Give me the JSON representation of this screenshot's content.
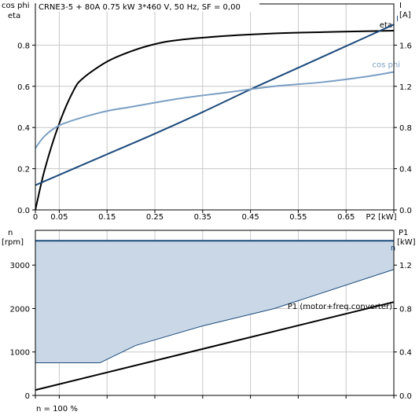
{
  "chart_data": [
    {
      "type": "line",
      "title": "CRNE3-5 + 80A   0.75 kW   3*460 V, 50 Hz, SF = 0,00",
      "xlabel": "P2 [kW]",
      "ylabel_left": [
        "cos phi",
        "eta"
      ],
      "ylabel_right": [
        "I",
        "[A]"
      ],
      "xlim": [
        0,
        0.75
      ],
      "ylim_left": [
        0,
        1
      ],
      "ylim_right": [
        0,
        2
      ],
      "x_ticks": [
        0,
        0.05,
        0.15,
        0.25,
        0.35,
        0.45,
        0.55,
        0.65,
        0.75
      ],
      "x_tick_labels": [
        "0",
        "0.05",
        "0.15",
        "0.25",
        "0.35",
        "0.45",
        "0.55",
        "0.65",
        "P2 [kW]"
      ],
      "y_ticks_left": [
        0.0,
        0.2,
        0.4,
        0.6,
        0.8
      ],
      "y_tick_labels_left": [
        "0.0",
        "0.2",
        "0.4",
        "0.6",
        "0.8"
      ],
      "y_ticks_right": [
        0.0,
        0.4,
        0.8,
        1.2,
        1.6
      ],
      "y_tick_labels_right": [
        "0.0",
        "0.4",
        "0.8",
        "1.2",
        "1.6"
      ],
      "grid": true,
      "series": [
        {
          "name": "eta",
          "axis": "left",
          "color": "#000000",
          "x": [
            0,
            0.02,
            0.05,
            0.08,
            0.1,
            0.15,
            0.2,
            0.25,
            0.3,
            0.4,
            0.5,
            0.6,
            0.7,
            0.75
          ],
          "y": [
            0,
            0.2,
            0.42,
            0.58,
            0.64,
            0.72,
            0.77,
            0.805,
            0.825,
            0.845,
            0.857,
            0.863,
            0.868,
            0.87
          ]
        },
        {
          "name": "I",
          "axis": "right",
          "color": "#1c4a7c",
          "x": [
            0,
            0.05,
            0.15,
            0.25,
            0.35,
            0.45,
            0.55,
            0.65,
            0.75
          ],
          "y": [
            0.24,
            0.34,
            0.54,
            0.74,
            0.95,
            1.17,
            1.38,
            1.59,
            1.8
          ]
        },
        {
          "name": "cos phi",
          "axis": "left",
          "color": "#7b9fc4",
          "x": [
            0,
            0.02,
            0.05,
            0.1,
            0.15,
            0.2,
            0.3,
            0.4,
            0.5,
            0.6,
            0.7,
            0.75
          ],
          "y": [
            0.3,
            0.36,
            0.41,
            0.45,
            0.48,
            0.5,
            0.54,
            0.57,
            0.6,
            0.62,
            0.65,
            0.67
          ]
        }
      ]
    },
    {
      "type": "area",
      "xlim": [
        0,
        0.75
      ],
      "ylabel_left": [
        "n",
        "[rpm]"
      ],
      "ylabel_right": [
        "P1",
        "[kW]"
      ],
      "ylim_left": [
        0,
        3800
      ],
      "ylim_right": [
        0,
        1.52
      ],
      "y_ticks_left": [
        0,
        1000,
        2000,
        3000
      ],
      "y_tick_labels_left": [
        "0",
        "1000",
        "2000",
        "3000"
      ],
      "y_ticks_right": [
        0.0,
        0.4,
        0.8,
        1.2
      ],
      "y_tick_labels_right": [
        "0.0",
        "0.4",
        "0.8",
        "1.2"
      ],
      "grid": true,
      "footnote": "n = 100 %",
      "series": [
        {
          "name": "n",
          "axis": "left",
          "color": "#1c4a7c",
          "fill": "#c9d7e6",
          "x": [
            0,
            0.75
          ],
          "y_max": [
            3560,
            3560
          ],
          "x_min": [
            0,
            0.135,
            0.21,
            0.35,
            0.5,
            0.75
          ],
          "y_min": [
            750,
            750,
            1150,
            1600,
            2000,
            2900
          ]
        },
        {
          "name": "P1 (motor+freq.converter)",
          "axis": "right",
          "color": "#000000",
          "x": [
            0,
            0.75
          ],
          "y": [
            0.05,
            0.86
          ]
        }
      ]
    }
  ]
}
